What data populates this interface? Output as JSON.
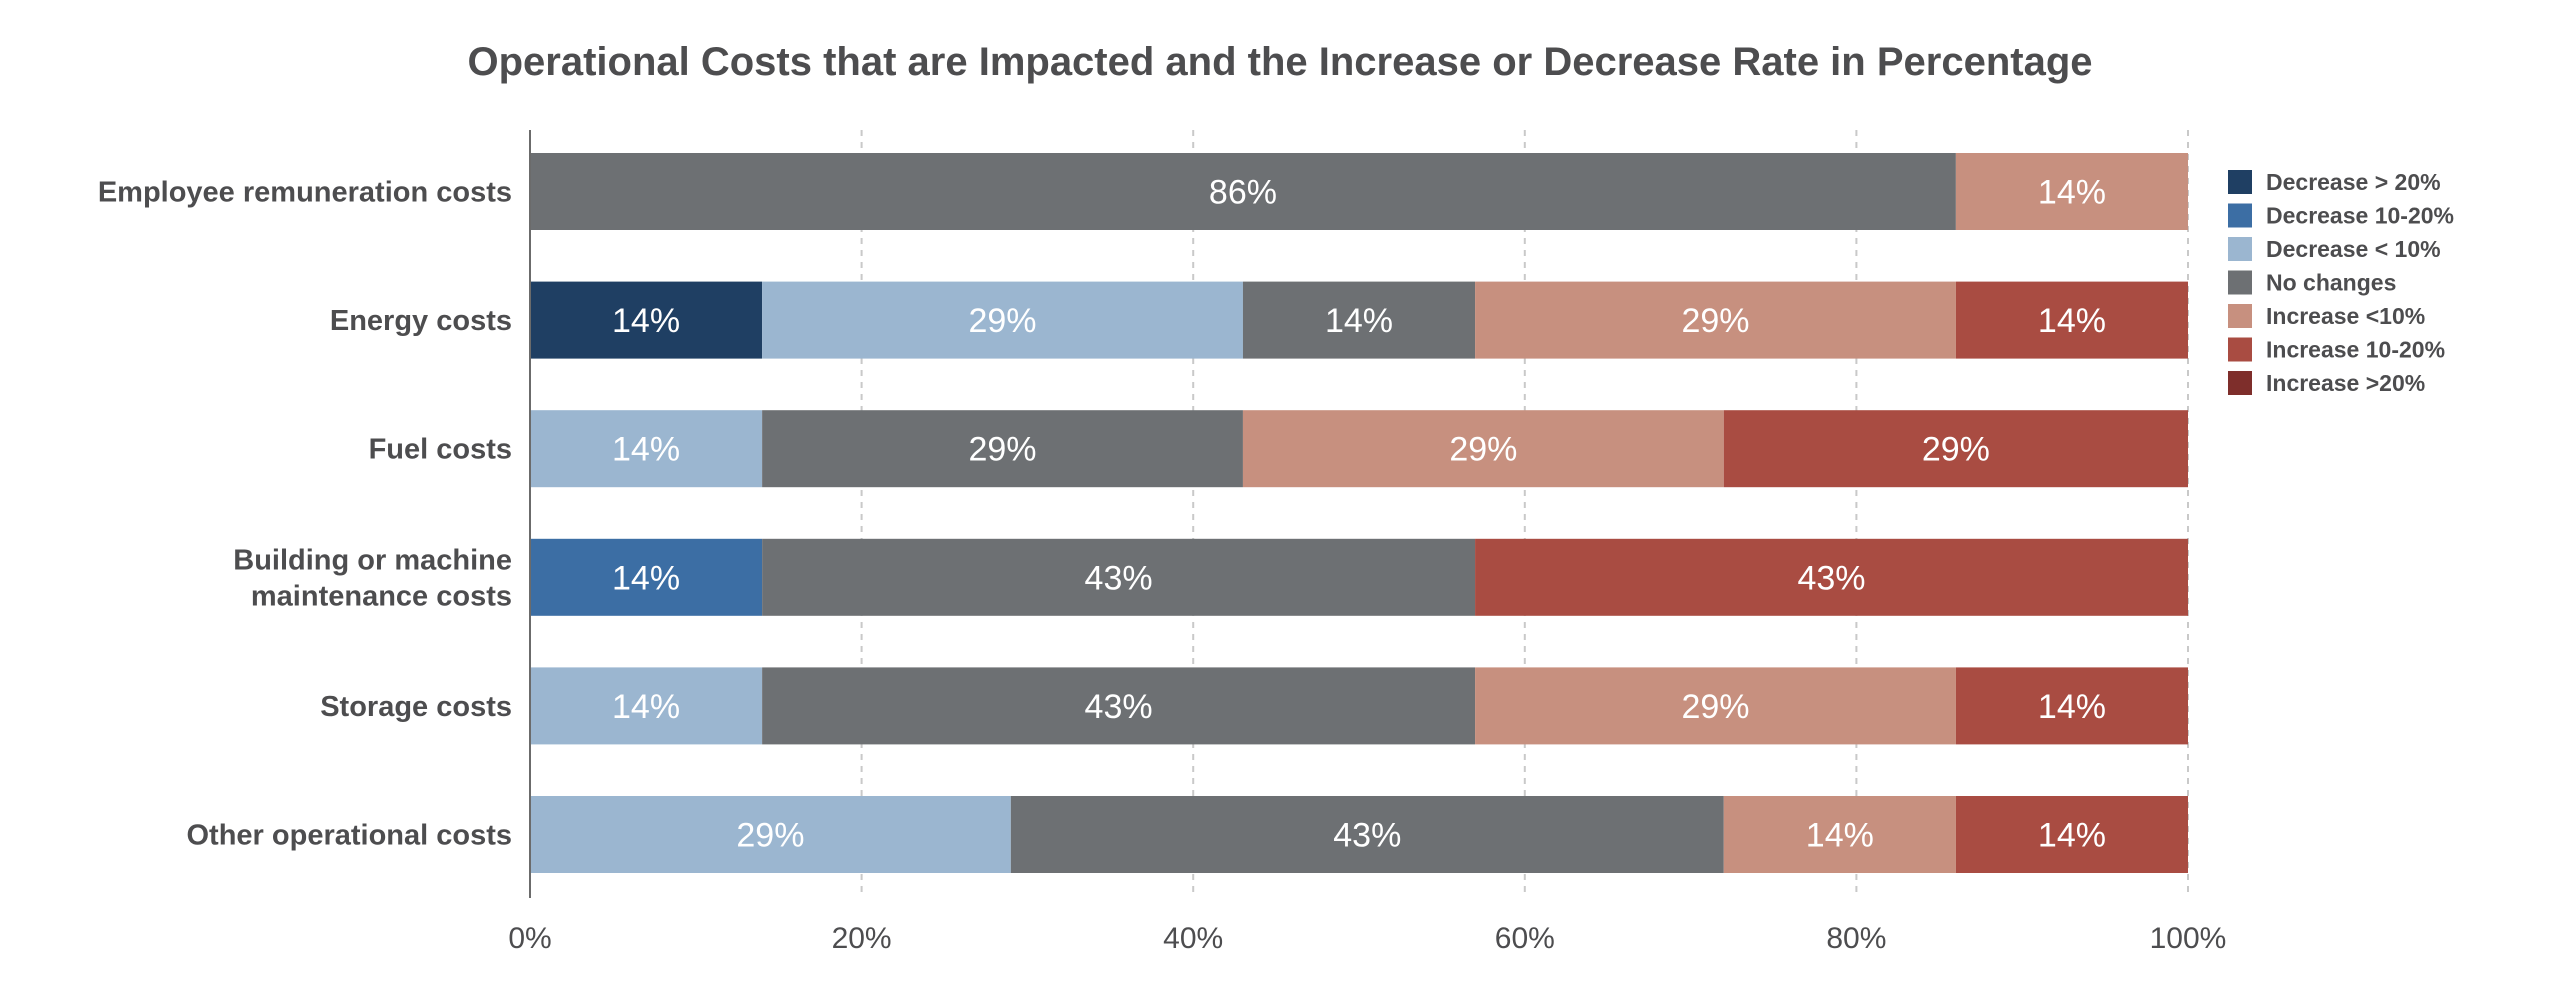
{
  "chart_data": {
    "type": "bar",
    "orientation": "horizontal",
    "stacked": true,
    "title": "Operational Costs that are Impacted and the Increase or Decrease Rate in Percentage",
    "xlabel": "",
    "ylabel": "",
    "xlim": [
      0,
      100
    ],
    "x_ticks": [
      "0%",
      "20%",
      "40%",
      "60%",
      "80%",
      "100%"
    ],
    "grid": "vertical dashed",
    "legend_position": "right",
    "categories": [
      [
        "Employee remuneration costs"
      ],
      [
        "Energy costs"
      ],
      [
        "Fuel costs"
      ],
      [
        "Building or machine",
        "maintenance costs"
      ],
      [
        "Storage costs"
      ],
      [
        "Other operational costs"
      ]
    ],
    "series": [
      {
        "name": "Decrease > 20%",
        "color": "#1f3f63",
        "values": [
          0,
          14,
          0,
          0,
          0,
          0
        ],
        "labels": [
          "",
          "14%",
          "",
          "",
          "",
          ""
        ]
      },
      {
        "name": "Decrease 10-20%",
        "color": "#3c6ea4",
        "values": [
          0,
          0,
          0,
          14,
          0,
          0
        ],
        "labels": [
          "",
          "",
          "",
          "14%",
          "",
          ""
        ]
      },
      {
        "name": "Decrease < 10%",
        "color": "#9bb6d0",
        "values": [
          0,
          29,
          14,
          0,
          14,
          29
        ],
        "labels": [
          "",
          "29%",
          "14%",
          "",
          "14%",
          "29%"
        ]
      },
      {
        "name": "No changes",
        "color": "#6d7073",
        "values": [
          86,
          14,
          29,
          43,
          43,
          43
        ],
        "labels": [
          "86%",
          "14%",
          "29%",
          "43%",
          "43%",
          "43%"
        ]
      },
      {
        "name": "Increase <10%",
        "color": "#c7907f",
        "values": [
          14,
          29,
          29,
          0,
          29,
          14
        ],
        "labels": [
          "14%",
          "29%",
          "29%",
          "",
          "29%",
          "14%"
        ]
      },
      {
        "name": "Increase 10-20%",
        "color": "#a94c42",
        "values": [
          0,
          14,
          29,
          43,
          14,
          14
        ],
        "labels": [
          "",
          "14%",
          "29%",
          "43%",
          "14%",
          "14%"
        ]
      },
      {
        "name": "Increase >20%",
        "color": "#7e2e2b",
        "values": [
          0,
          0,
          0,
          0,
          0,
          0
        ],
        "labels": [
          "",
          "",
          "",
          "",
          "",
          ""
        ]
      }
    ]
  }
}
